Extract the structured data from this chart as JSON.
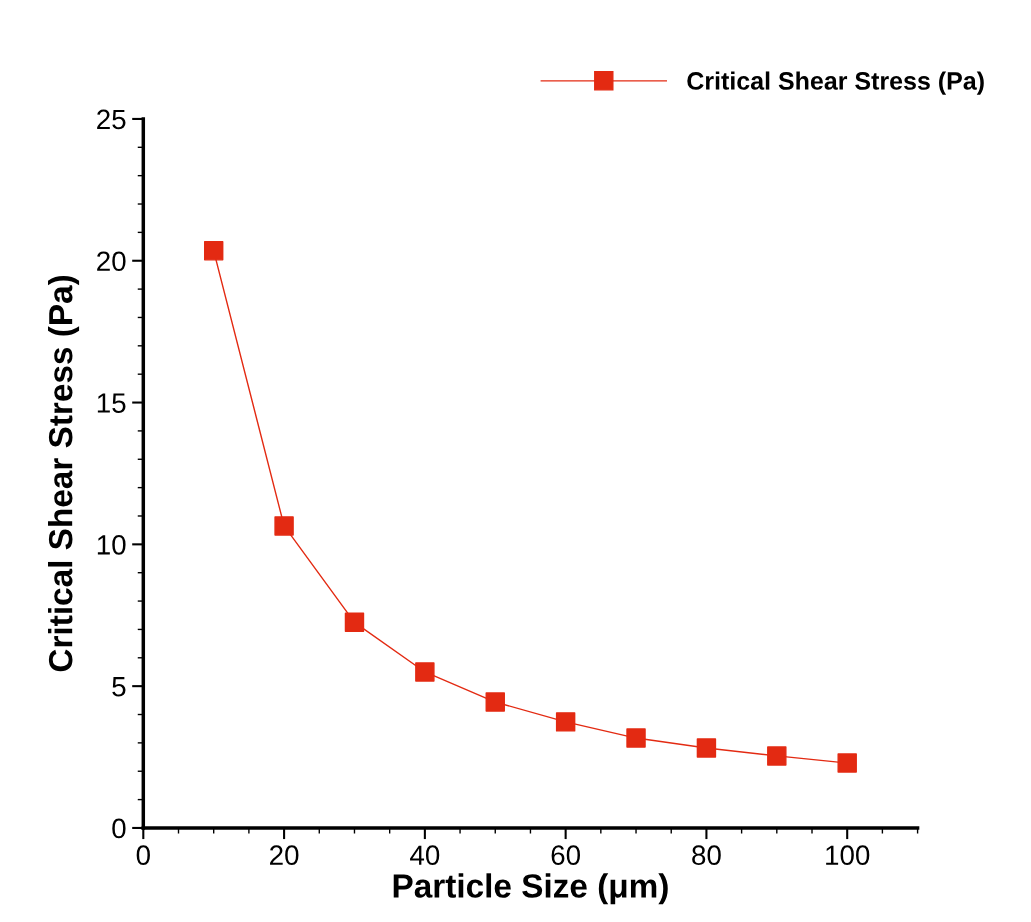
{
  "chart_data": {
    "type": "line",
    "xlabel": "Particle Size (μm)",
    "ylabel": "Critical Shear Stress (Pa)",
    "x": [
      10,
      20,
      30,
      40,
      50,
      60,
      70,
      80,
      90,
      100
    ],
    "series": [
      {
        "name": "Critical Shear Stress (Pa)",
        "color": "#e32a12",
        "values": [
          20.35,
          10.65,
          7.25,
          5.5,
          4.44,
          3.74,
          3.17,
          2.82,
          2.54,
          2.29
        ]
      }
    ],
    "xlim": [
      0,
      110
    ],
    "ylim": [
      0,
      25
    ],
    "xticks": [
      0,
      20,
      40,
      60,
      80,
      100
    ],
    "yticks": [
      0,
      5,
      10,
      15,
      20,
      25
    ],
    "marker": "square",
    "line_style": "solid",
    "grid": false,
    "legend": "top right"
  }
}
